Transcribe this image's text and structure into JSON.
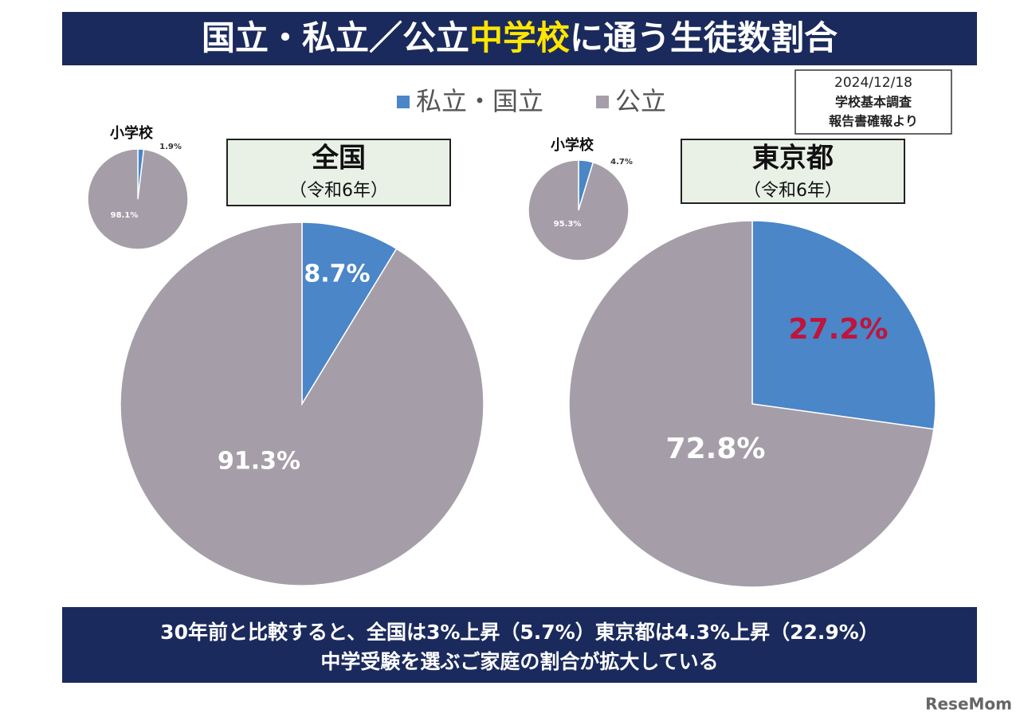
{
  "header": {
    "title": [
      "国立・私立／公立",
      "中学校",
      "に通う生徒数割合"
    ]
  },
  "source": [
    "2024/12/18",
    "学校基本調査",
    "報告書確報より"
  ],
  "footer": [
    "30年前と比較すると、全国は3%上昇（5.7%）東京都は4.3%上昇（22.9%）",
    "中学受験を選ぶご家庭の割合が拡大している"
  ],
  "watermark": "ReseMom",
  "chart_data": [
    {
      "type": "pie",
      "title": "全国",
      "subtitle": "（令和6年）",
      "categories": [
        "私立・国立",
        "公立"
      ],
      "values": [
        8.7,
        91.3
      ],
      "value_labels": [
        "8.7%",
        "91.3%"
      ],
      "colors": [
        "#4a86c8",
        "#a59ea8"
      ],
      "label_colors": [
        "#ffffff",
        "#ffffff"
      ]
    },
    {
      "type": "pie",
      "title": "小学校",
      "categories": [
        "私立・国立",
        "公立"
      ],
      "values": [
        1.9,
        98.1
      ],
      "value_labels": [
        "1.9%",
        "98.1%"
      ],
      "colors": [
        "#4a86c8",
        "#a59ea8"
      ],
      "label_colors": [
        "#333333",
        "#ffffff"
      ]
    },
    {
      "type": "pie",
      "title": "東京都",
      "subtitle": "（令和6年）",
      "categories": [
        "私立・国立",
        "公立"
      ],
      "values": [
        27.2,
        72.8
      ],
      "value_labels": [
        "27.2%",
        "72.8%"
      ],
      "colors": [
        "#4a86c8",
        "#a59ea8"
      ],
      "label_colors": [
        "#c0143c",
        "#ffffff"
      ]
    },
    {
      "type": "pie",
      "title": "小学校",
      "categories": [
        "私立・国立",
        "公立"
      ],
      "values": [
        4.7,
        95.3
      ],
      "value_labels": [
        "4.7%",
        "95.3%"
      ],
      "colors": [
        "#4a86c8",
        "#a59ea8"
      ],
      "label_colors": [
        "#333333",
        "#ffffff"
      ]
    }
  ]
}
